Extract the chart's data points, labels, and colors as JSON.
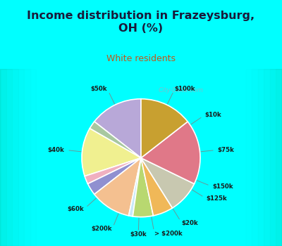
{
  "title": "Income distribution in Frazeysburg,\nOH (%)",
  "subtitle": "White residents",
  "bg_top": "#00FFFF",
  "bg_chart_outer": "#c8eee8",
  "bg_chart_inner": "#e8f8f0",
  "labels": [
    "$100k",
    "$10k",
    "$75k",
    "$150k",
    "$125k",
    "$20k",
    "> $200k",
    "$30k",
    "$200k",
    "$60k",
    "$40k",
    "$50k"
  ],
  "values": [
    13,
    2,
    12,
    2,
    3,
    10,
    1,
    5,
    5,
    8,
    16,
    13
  ],
  "colors": [
    "#b8a8d8",
    "#a8c8a0",
    "#f0f090",
    "#f0b0c0",
    "#9090d0",
    "#f4c090",
    "#c8e8f8",
    "#b8d870",
    "#f0b858",
    "#c8c8b0",
    "#e07888",
    "#c8a030"
  ],
  "watermark": "City-Data.com",
  "title_color": "#1a1a3a",
  "subtitle_color": "#c05818",
  "label_color": "#1a1a1a"
}
